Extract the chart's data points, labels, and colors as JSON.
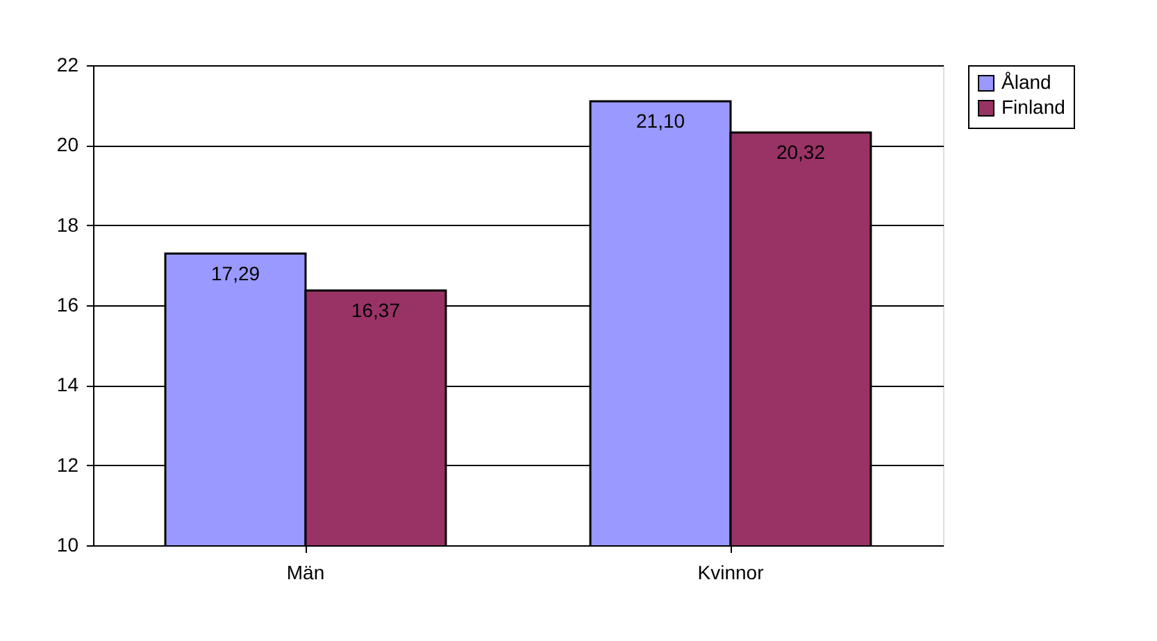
{
  "chart_data": {
    "type": "bar",
    "categories": [
      "Män",
      "Kvinnor"
    ],
    "series": [
      {
        "name": "Åland",
        "color": "#9999ff",
        "values": [
          17.29,
          21.1
        ],
        "value_labels": [
          "17,29",
          "21,10"
        ]
      },
      {
        "name": "Finland",
        "color": "#993366",
        "values": [
          16.37,
          20.32
        ],
        "value_labels": [
          "16,37",
          "20,32"
        ]
      }
    ],
    "ylim": [
      10,
      22
    ],
    "yticks": [
      10,
      12,
      14,
      16,
      18,
      20,
      22
    ],
    "grid": "y",
    "legend": "right"
  }
}
